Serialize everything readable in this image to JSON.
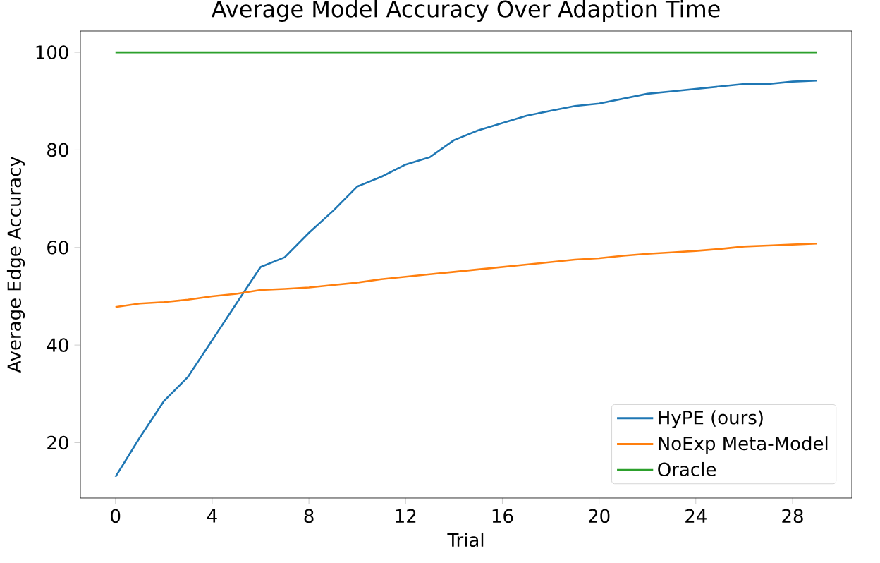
{
  "chart_data": {
    "type": "line",
    "title": "Average Model Accuracy Over Adaption Time",
    "xlabel": "Trial",
    "ylabel": "Average Edge Accuracy",
    "x": [
      0,
      1,
      2,
      3,
      4,
      5,
      6,
      7,
      8,
      9,
      10,
      11,
      12,
      13,
      14,
      15,
      16,
      17,
      18,
      19,
      20,
      21,
      22,
      23,
      24,
      25,
      26,
      27,
      28,
      29
    ],
    "series": [
      {
        "name": "HyPE (ours)",
        "color": "#1f77b4",
        "values": [
          13,
          21,
          28.5,
          33.5,
          41,
          48.5,
          56,
          58,
          63,
          67.5,
          72.5,
          74.5,
          77,
          78.5,
          82,
          84,
          85.5,
          87,
          88,
          89,
          89.5,
          90.5,
          91.5,
          92,
          92.5,
          93,
          93.5,
          93.5,
          94,
          94.2
        ]
      },
      {
        "name": "NoExp Meta-Model",
        "color": "#ff7f0e",
        "values": [
          47.8,
          48.5,
          48.8,
          49.3,
          50,
          50.5,
          51.3,
          51.5,
          51.8,
          52.3,
          52.8,
          53.5,
          54,
          54.5,
          55,
          55.5,
          56,
          56.5,
          57,
          57.5,
          57.8,
          58.3,
          58.7,
          59,
          59.3,
          59.7,
          60.2,
          60.4,
          60.6,
          60.8
        ]
      },
      {
        "name": "Oracle",
        "color": "#2ca02c",
        "values": [
          100,
          100,
          100,
          100,
          100,
          100,
          100,
          100,
          100,
          100,
          100,
          100,
          100,
          100,
          100,
          100,
          100,
          100,
          100,
          100,
          100,
          100,
          100,
          100,
          100,
          100,
          100,
          100,
          100,
          100
        ]
      }
    ],
    "xlim": [
      -1.45,
      30.45
    ],
    "ylim": [
      8.65,
      104.35
    ],
    "xticks": [
      0,
      4,
      8,
      12,
      16,
      20,
      24,
      28
    ],
    "yticks": [
      20,
      40,
      60,
      80,
      100
    ],
    "legend": "bottom right",
    "grid": false,
    "marker": "none",
    "line_style": "solid"
  }
}
